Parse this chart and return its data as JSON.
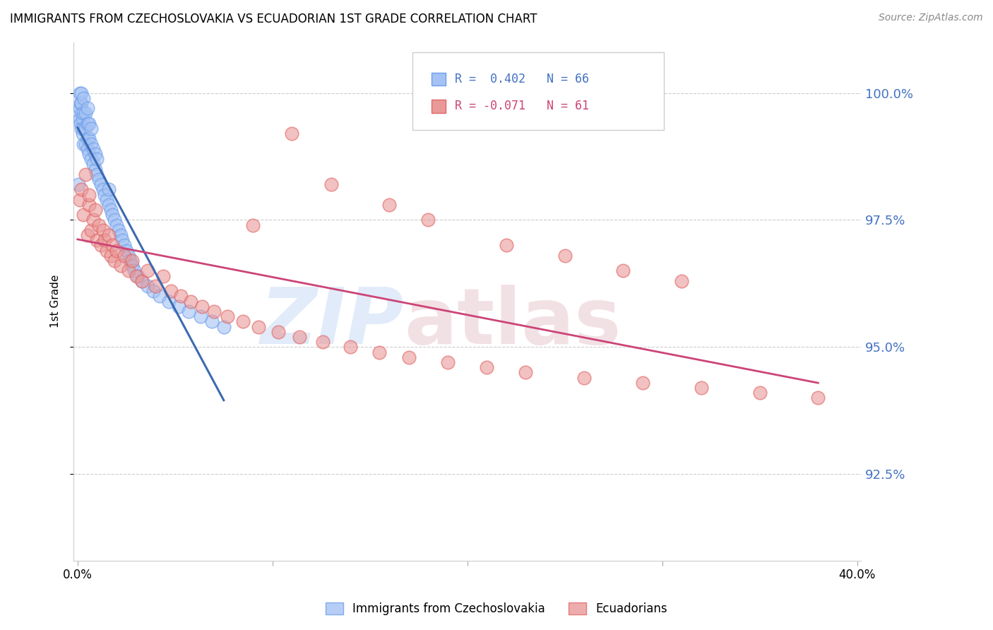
{
  "title": "IMMIGRANTS FROM CZECHOSLOVAKIA VS ECUADORIAN 1ST GRADE CORRELATION CHART",
  "source": "Source: ZipAtlas.com",
  "ylabel": "1st Grade",
  "blue_R": 0.402,
  "blue_N": 66,
  "pink_R": -0.071,
  "pink_N": 61,
  "blue_color": "#a4c2f4",
  "blue_edge_color": "#6d9eeb",
  "blue_line_color": "#3c6ab0",
  "pink_color": "#ea9999",
  "pink_edge_color": "#e06666",
  "pink_line_color": "#cc4477",
  "blue_label": "Immigrants from Czechoslovakia",
  "pink_label": "Ecuadorians",
  "xlim": [
    0.0,
    0.4
  ],
  "ylim": [
    90.8,
    101.0
  ],
  "y_ticks": [
    92.5,
    95.0,
    97.5,
    100.0
  ],
  "x_ticks": [
    0.0,
    0.1,
    0.2,
    0.3,
    0.4
  ],
  "blue_x": [
    0.0005,
    0.001,
    0.001,
    0.001,
    0.0015,
    0.0015,
    0.002,
    0.002,
    0.002,
    0.002,
    0.0025,
    0.0025,
    0.003,
    0.003,
    0.003,
    0.003,
    0.004,
    0.004,
    0.004,
    0.005,
    0.005,
    0.005,
    0.005,
    0.006,
    0.006,
    0.006,
    0.007,
    0.007,
    0.007,
    0.008,
    0.008,
    0.009,
    0.009,
    0.01,
    0.01,
    0.011,
    0.012,
    0.013,
    0.014,
    0.015,
    0.016,
    0.016,
    0.017,
    0.018,
    0.019,
    0.02,
    0.021,
    0.022,
    0.023,
    0.024,
    0.025,
    0.026,
    0.027,
    0.028,
    0.029,
    0.031,
    0.033,
    0.036,
    0.039,
    0.042,
    0.047,
    0.052,
    0.057,
    0.063,
    0.069,
    0.075
  ],
  "blue_y": [
    98.2,
    99.5,
    99.7,
    100.0,
    99.4,
    99.8,
    99.3,
    99.6,
    99.8,
    100.0,
    99.2,
    99.5,
    99.0,
    99.3,
    99.6,
    99.9,
    99.0,
    99.3,
    99.6,
    98.9,
    99.1,
    99.4,
    99.7,
    98.8,
    99.1,
    99.4,
    98.7,
    99.0,
    99.3,
    98.6,
    98.9,
    98.5,
    98.8,
    98.4,
    98.7,
    98.3,
    98.2,
    98.1,
    98.0,
    97.9,
    97.8,
    98.1,
    97.7,
    97.6,
    97.5,
    97.4,
    97.3,
    97.2,
    97.1,
    97.0,
    96.9,
    96.8,
    96.7,
    96.6,
    96.5,
    96.4,
    96.3,
    96.2,
    96.1,
    96.0,
    95.9,
    95.8,
    95.7,
    95.6,
    95.5,
    95.4
  ],
  "pink_x": [
    0.001,
    0.002,
    0.003,
    0.004,
    0.005,
    0.006,
    0.006,
    0.007,
    0.008,
    0.009,
    0.01,
    0.011,
    0.012,
    0.013,
    0.014,
    0.015,
    0.016,
    0.017,
    0.018,
    0.019,
    0.02,
    0.022,
    0.024,
    0.026,
    0.028,
    0.03,
    0.033,
    0.036,
    0.04,
    0.044,
    0.048,
    0.053,
    0.058,
    0.064,
    0.07,
    0.077,
    0.085,
    0.093,
    0.103,
    0.114,
    0.126,
    0.14,
    0.155,
    0.17,
    0.19,
    0.21,
    0.23,
    0.26,
    0.29,
    0.32,
    0.35,
    0.38,
    0.22,
    0.25,
    0.28,
    0.31,
    0.18,
    0.16,
    0.13,
    0.11,
    0.09
  ],
  "pink_y": [
    97.9,
    98.1,
    97.6,
    98.4,
    97.2,
    97.8,
    98.0,
    97.3,
    97.5,
    97.7,
    97.1,
    97.4,
    97.0,
    97.3,
    97.1,
    96.9,
    97.2,
    96.8,
    97.0,
    96.7,
    96.9,
    96.6,
    96.8,
    96.5,
    96.7,
    96.4,
    96.3,
    96.5,
    96.2,
    96.4,
    96.1,
    96.0,
    95.9,
    95.8,
    95.7,
    95.6,
    95.5,
    95.4,
    95.3,
    95.2,
    95.1,
    95.0,
    94.9,
    94.8,
    94.7,
    94.6,
    94.5,
    94.4,
    94.3,
    94.2,
    94.1,
    94.0,
    97.0,
    96.8,
    96.5,
    96.3,
    97.5,
    97.8,
    98.2,
    99.2,
    97.4
  ],
  "legend_R_blue_color": "#4472c4",
  "legend_R_pink_color": "#cc4477",
  "right_axis_color": "#4472c4",
  "title_fontsize": 12,
  "source_fontsize": 10
}
